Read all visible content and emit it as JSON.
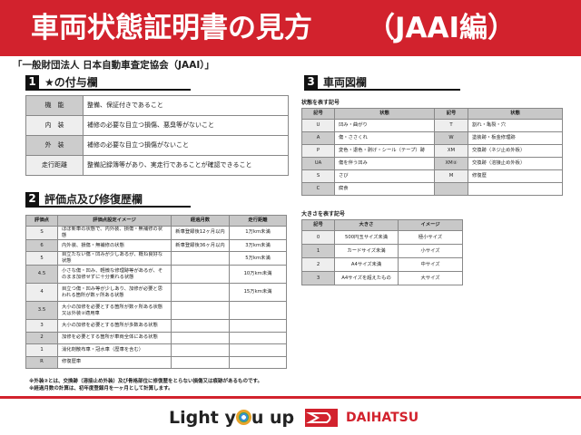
{
  "header": {
    "title": "車両状態証明書の見方",
    "edition": "（JAAI編）"
  },
  "subtitle": "「一般財団法人 日本自動車査定協会（JAAI）」",
  "section1": {
    "num": "1",
    "title": "★の付与欄",
    "rows": [
      [
        "機　能",
        "整備、保証付きであること"
      ],
      [
        "内　装",
        "補修の必要な目立つ損傷、悪臭等がないこと"
      ],
      [
        "外　装",
        "補修の必要な目立つ損傷がないこと"
      ],
      [
        "走行距離",
        "整備記録簿等があり、実走行であることが確認できること"
      ]
    ]
  },
  "section2": {
    "num": "2",
    "title": "評価点及び修復歴欄",
    "headers": [
      "評価点",
      "評価点設定イメージ",
      "経過月数",
      "走行距離"
    ],
    "rows": [
      [
        "S",
        "ほぼ新車の状態で、内外装、損傷・無補修の状態",
        "新車登録後12ヶ月以内",
        "1万km未満"
      ],
      [
        "6",
        "内外装、損傷・無補修の状態",
        "新車登録後36ヶ月以内",
        "3万km未満"
      ],
      [
        "5",
        "目立たない傷・凹みが少しあるが、概ね良好な状態",
        "",
        "5万km未満"
      ],
      [
        "4.5",
        "小さな傷・凹み、軽微な修理跡等があるが、そのまま加修せずに十分乗れる状態",
        "",
        "10万km未満"
      ],
      [
        "4",
        "目立つ傷・凹み等が少しあり、加修が必要と思われる箇所が数ヶ所ある状態",
        "",
        "15万km未満"
      ],
      [
        "3.5",
        "大小の加修を必要とする箇所が数ヶ所ある状態又は外装②適用車",
        "",
        ""
      ],
      [
        "3",
        "大小の加修を必要とする箇所が多数ある状態",
        "",
        ""
      ],
      [
        "2",
        "加修を必要とする箇所が車両全体にある状態",
        "",
        ""
      ],
      [
        "1",
        "消化剤散布車・冠水車（歴車を含む）",
        "",
        ""
      ],
      [
        "R",
        "修復歴車",
        "",
        ""
      ]
    ]
  },
  "notes": [
    "※外装②とは、交換跡（溶接止め外装）及び骨格部位に修復歴をとらない損傷又は痕跡があるものです。",
    "※経過月数の計算は、初年度登録月を一ヶ月として計算します。"
  ],
  "section3": {
    "num": "3",
    "title": "車両図欄",
    "state_caption": "状態を表す記号",
    "state_headers": [
      "記号",
      "状態",
      "記号",
      "状態"
    ],
    "state_rows": [
      [
        "U",
        "凹み・曲がり",
        "T",
        "割れ・亀裂・穴"
      ],
      [
        "A",
        "傷・ささくれ",
        "W",
        "塗装跡・板金修理跡"
      ],
      [
        "P",
        "変色・退色・剥げ・シール（テープ）跡",
        "XM",
        "交換跡（ネジ止め外板）"
      ],
      [
        "UA",
        "傷を伴う凹み",
        "XM②",
        "交換跡（溶接止め外板）"
      ],
      [
        "S",
        "さび",
        "M",
        "修復歴"
      ],
      [
        "C",
        "腐食",
        "",
        ""
      ]
    ],
    "size_caption": "大きさを表す記号",
    "size_headers": [
      "記号",
      "大きさ",
      "イメージ"
    ],
    "size_rows": [
      [
        "0",
        "500円玉サイズ未満",
        "極小サイズ"
      ],
      [
        "1",
        "カードサイズ未満",
        "小サイズ"
      ],
      [
        "2",
        "A4サイズ未満",
        "中サイズ"
      ],
      [
        "3",
        "A4サイズを超えたもの",
        "大サイズ"
      ]
    ]
  },
  "footer": {
    "slogan_pre": "Light y",
    "slogan_post": "u up",
    "brand": "DAIHATSU",
    "brand_color": "#d2222d"
  }
}
